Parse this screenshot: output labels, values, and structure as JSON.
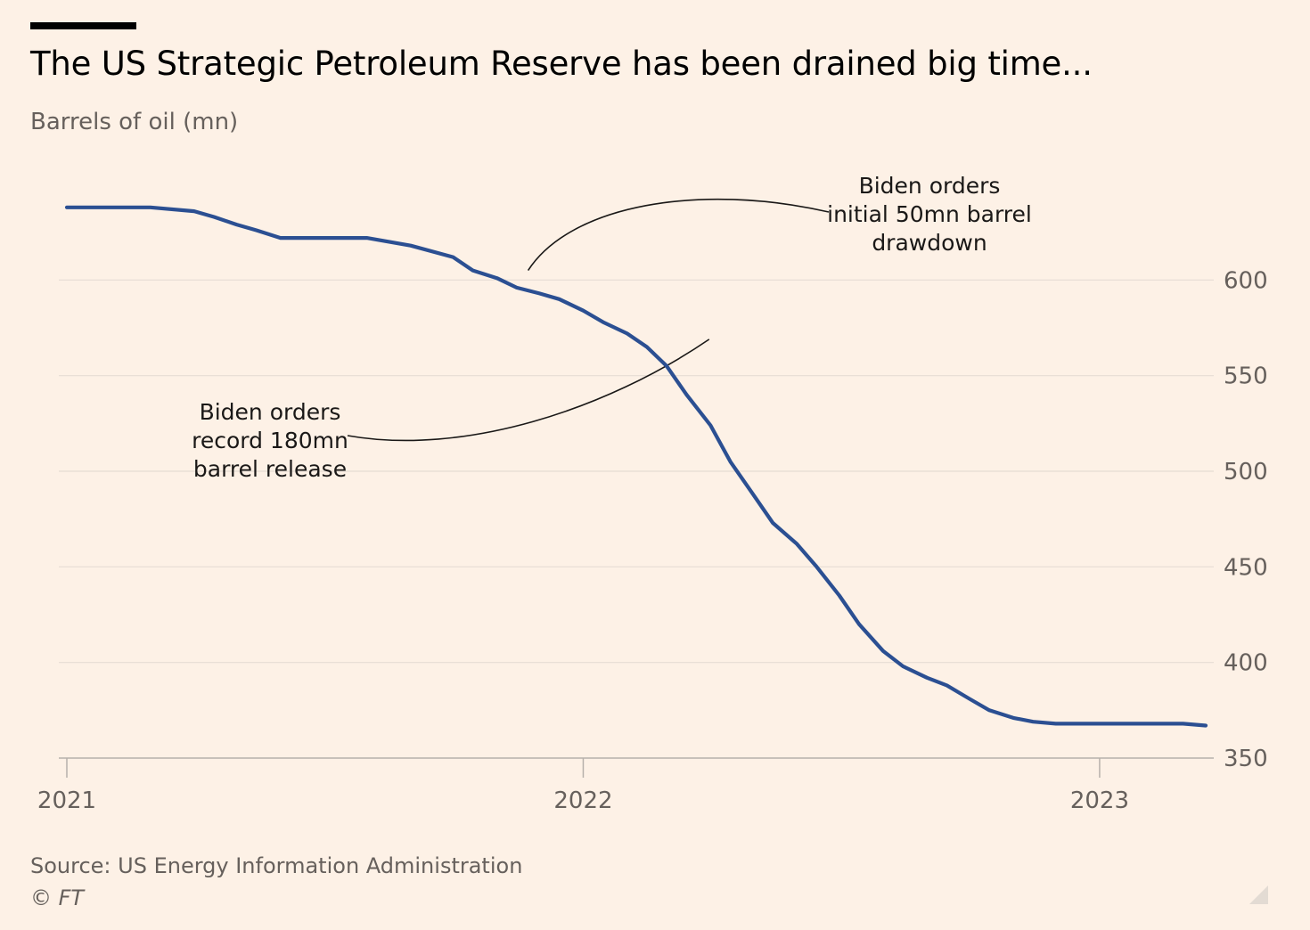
{
  "header": {
    "title": "The US Strategic Petroleum Reserve has been drained big time...",
    "subtitle": "Barrels of oil (mn)"
  },
  "footer": {
    "source": "Source: US Energy Information Administration",
    "copyright": "© FT"
  },
  "colors": {
    "background": "#fdf1e6",
    "line": "#2b4f92",
    "grid": "#e6dcd3",
    "axis": "#b7b1ab",
    "tick_label": "#66605c",
    "annotation_text": "#1a1817",
    "annotation_line": "#1a1817"
  },
  "chart_data": {
    "type": "line",
    "title": "The US Strategic Petroleum Reserve has been drained big time...",
    "ylabel": "Barrels of oil (mn)",
    "xlabel": "",
    "xlim": [
      "2021-01-01",
      "2023-03-17"
    ],
    "ylim": [
      350,
      650
    ],
    "y_ticks": [
      350,
      400,
      450,
      500,
      550,
      600
    ],
    "x_ticks": [
      {
        "date": "2021-01-01",
        "label": "2021"
      },
      {
        "date": "2022-01-01",
        "label": "2022"
      },
      {
        "date": "2023-01-01",
        "label": "2023"
      }
    ],
    "y_axis_position": "right",
    "grid": true,
    "series": [
      {
        "x": [
          "2021-01-01",
          "2021-02-01",
          "2021-03-01",
          "2021-04-01",
          "2021-04-15",
          "2021-05-01",
          "2021-05-15",
          "2021-06-01",
          "2021-06-15",
          "2021-07-01",
          "2021-08-01",
          "2021-09-01",
          "2021-10-01",
          "2021-10-15",
          "2021-11-01",
          "2021-11-15",
          "2021-12-01",
          "2021-12-15",
          "2022-01-01",
          "2022-01-15",
          "2022-02-01",
          "2022-02-15",
          "2022-03-01",
          "2022-03-15",
          "2022-04-01",
          "2022-04-15",
          "2022-05-01",
          "2022-05-15",
          "2022-06-01",
          "2022-06-15",
          "2022-07-01",
          "2022-07-15",
          "2022-08-01",
          "2022-08-15",
          "2022-09-01",
          "2022-09-15",
          "2022-10-01",
          "2022-10-15",
          "2022-11-01",
          "2022-11-15",
          "2022-12-01",
          "2022-12-15",
          "2023-01-01",
          "2023-02-01",
          "2023-03-01",
          "2023-03-17"
        ],
        "y": [
          638,
          638,
          638,
          636,
          633,
          629,
          626,
          622,
          622,
          622,
          622,
          618,
          612,
          605,
          601,
          596,
          593,
          590,
          584,
          578,
          572,
          565,
          555,
          540,
          524,
          505,
          488,
          473,
          462,
          450,
          435,
          420,
          406,
          398,
          392,
          388,
          381,
          375,
          371,
          369,
          368,
          368,
          368,
          368,
          368,
          367
        ]
      }
    ],
    "annotations": [
      {
        "lines": [
          "Biden orders",
          "initial 50mn barrel",
          "drawdown"
        ],
        "date": "2021-11-23",
        "value": 605
      },
      {
        "lines": [
          "Biden orders",
          "record 180mn",
          "barrel release"
        ],
        "date": "2022-03-31",
        "value": 569
      }
    ]
  }
}
